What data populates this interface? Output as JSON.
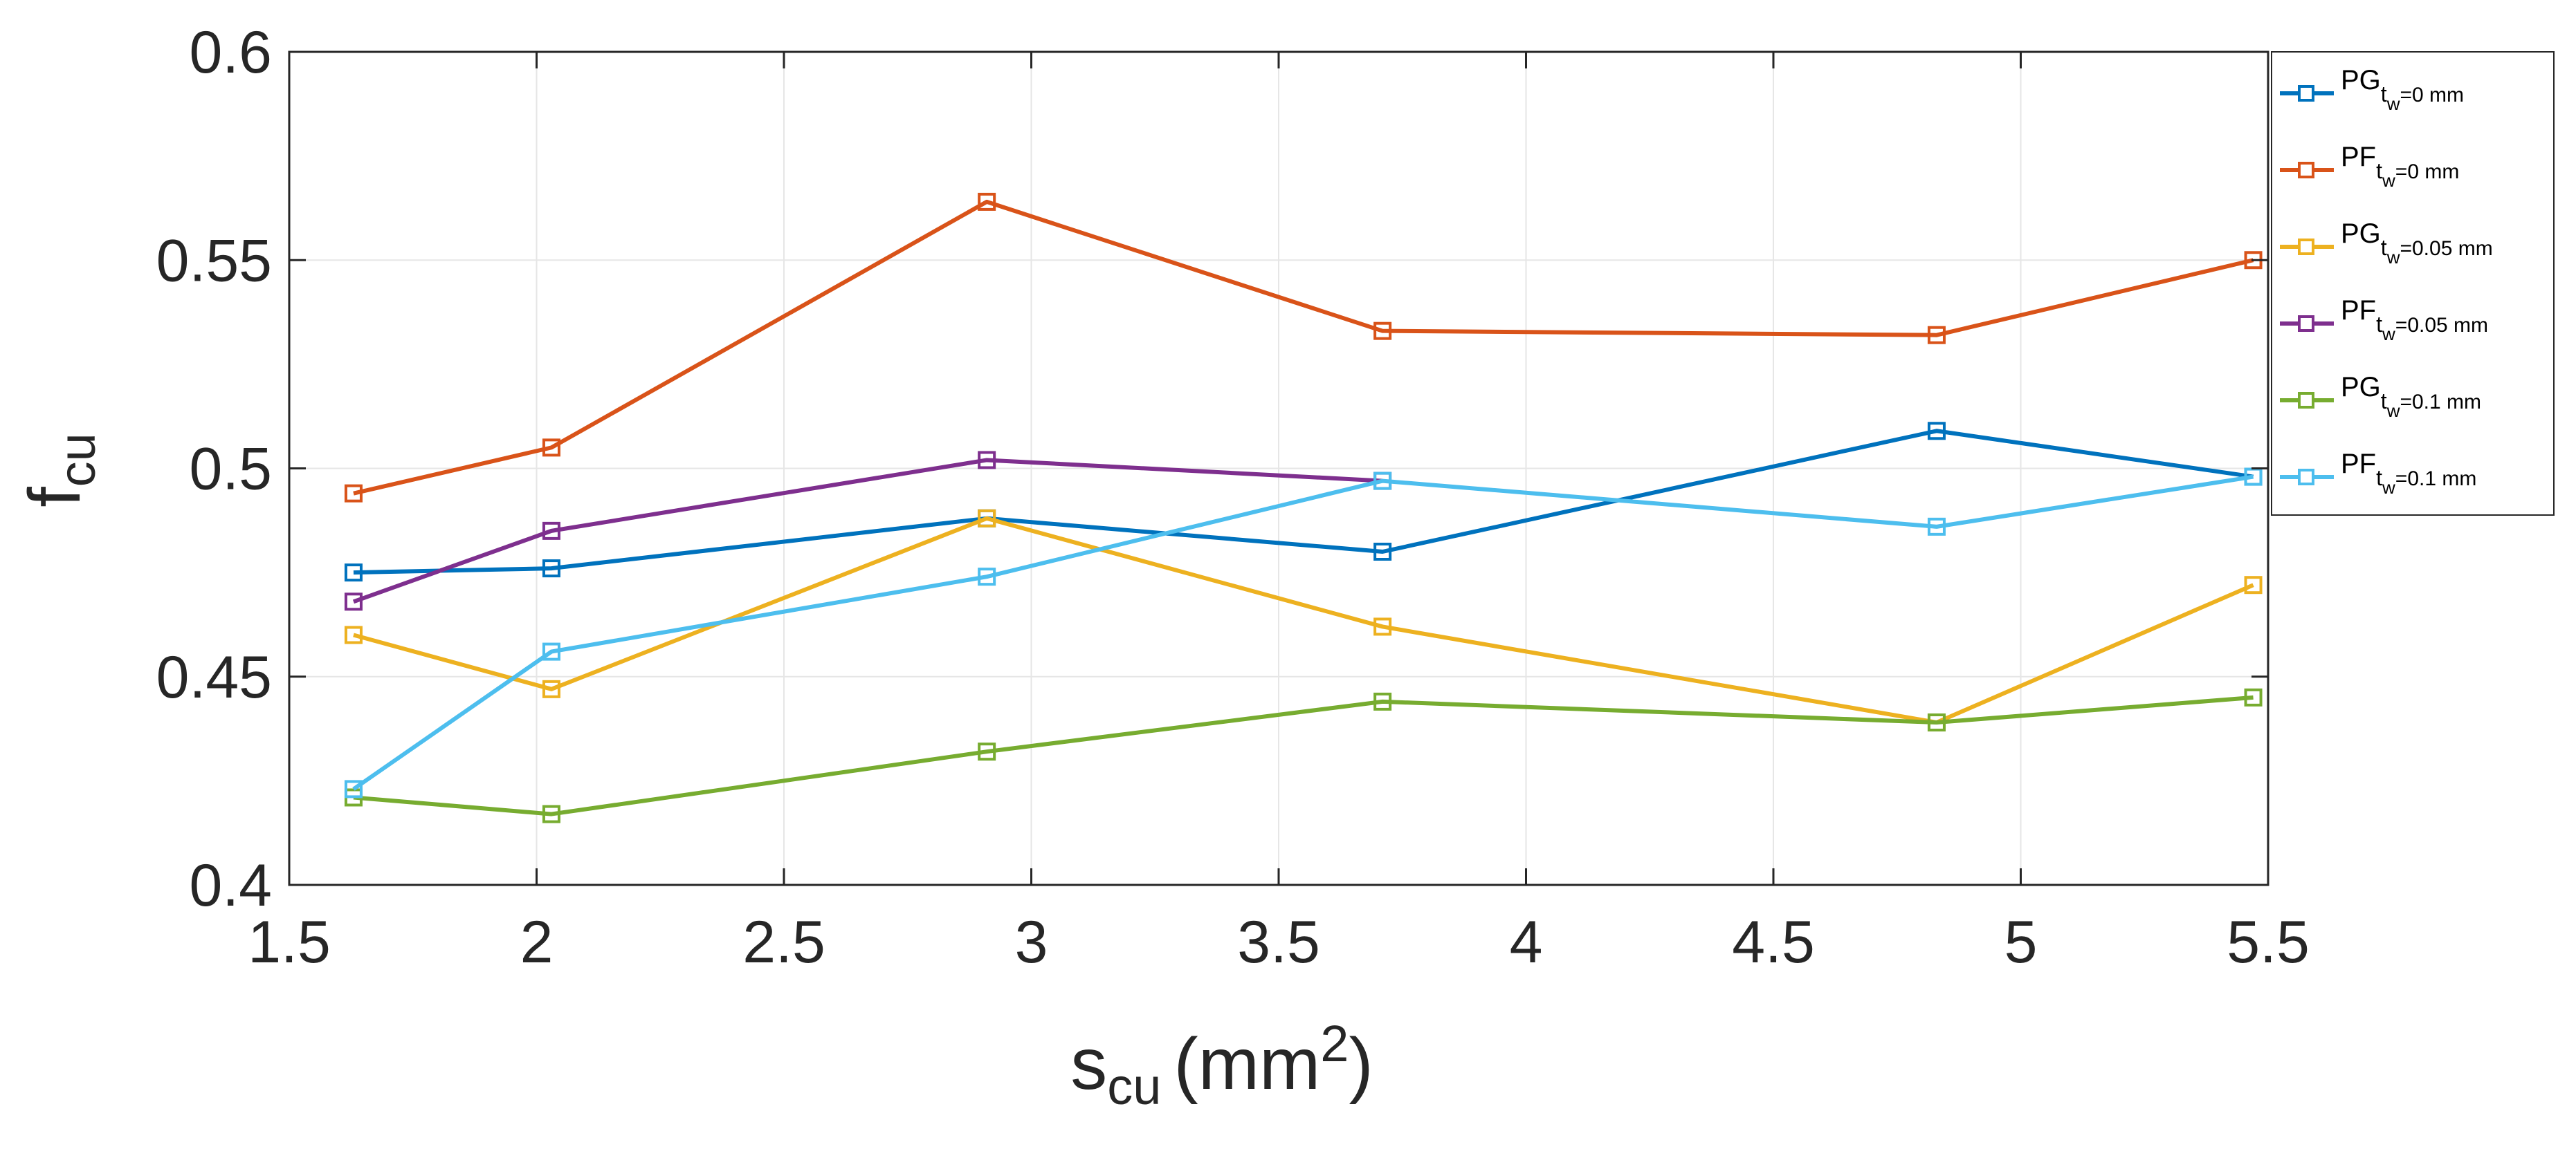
{
  "chart_data": {
    "type": "line",
    "title": "",
    "xlabel": {
      "main": "s",
      "sub": "cu",
      "unit_open": "(mm",
      "unit_sup": "2",
      "unit_close": ")"
    },
    "ylabel": {
      "main": "f",
      "sub": "cu"
    },
    "xlim": [
      1.5,
      5.5
    ],
    "ylim": [
      0.4,
      0.6
    ],
    "xticks": [
      1.5,
      2,
      2.5,
      3,
      3.5,
      4,
      4.5,
      5,
      5.5
    ],
    "xtick_labels": [
      "1.5",
      "2",
      "2.5",
      "3",
      "3.5",
      "4",
      "4.5",
      "5",
      "5.5"
    ],
    "yticks": [
      0.4,
      0.45,
      0.5,
      0.55,
      0.6
    ],
    "ytick_labels": [
      "0.4",
      "0.45",
      "0.5",
      "0.55",
      "0.6"
    ],
    "grid": true,
    "marker": "square",
    "legend_position": "top-right, outside",
    "x": [
      1.63,
      2.03,
      2.91,
      3.71,
      4.83,
      5.47
    ],
    "series": [
      {
        "name": "PG_tw=0 mm",
        "label_main": "PG",
        "label_sub": "t",
        "label_subsub": "w",
        "label_tail": "=0 mm",
        "color": "#0072BD",
        "values": [
          0.475,
          0.476,
          0.488,
          0.48,
          0.509,
          0.498
        ]
      },
      {
        "name": "PF_tw=0 mm",
        "label_main": "PF",
        "label_sub": "t",
        "label_subsub": "w",
        "label_tail": "=0 mm",
        "color": "#D95319",
        "values": [
          0.494,
          0.505,
          0.564,
          0.533,
          0.532,
          0.55
        ]
      },
      {
        "name": "PG_tw=0.05 mm",
        "label_main": "PG",
        "label_sub": "t",
        "label_subsub": "w",
        "label_tail": "=0.05 mm",
        "color": "#EDB120",
        "values": [
          0.46,
          0.447,
          0.488,
          0.462,
          0.439,
          0.472
        ]
      },
      {
        "name": "PF_tw=0.05 mm",
        "label_main": "PF",
        "label_sub": "t",
        "label_subsub": "w",
        "label_tail": "=0.05 mm",
        "color": "#7E2F8E",
        "values": [
          0.468,
          0.485,
          0.502,
          0.497,
          null,
          null
        ]
      },
      {
        "name": "PG_tw=0.1 mm",
        "label_main": "PG",
        "label_sub": "t",
        "label_subsub": "w",
        "label_tail": "=0.1 mm",
        "color": "#77AC30",
        "values": [
          0.421,
          0.417,
          0.432,
          0.444,
          0.439,
          0.445
        ]
      },
      {
        "name": "PF_tw=0.1 mm",
        "label_main": "PF",
        "label_sub": "t",
        "label_subsub": "w",
        "label_tail": "=0.1 mm",
        "color": "#4DBEEE",
        "values": [
          0.423,
          0.456,
          0.474,
          0.497,
          0.486,
          0.498
        ]
      }
    ]
  }
}
